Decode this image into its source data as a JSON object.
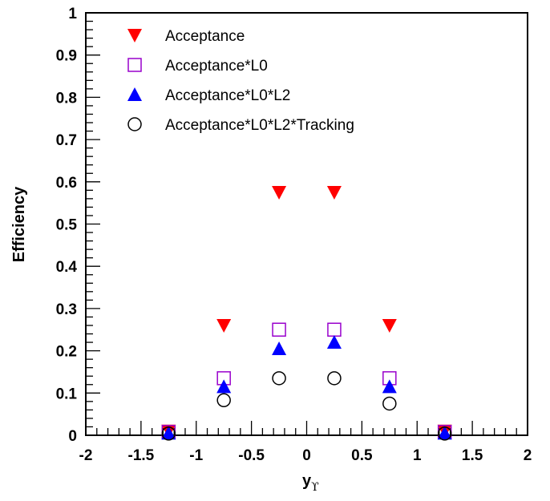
{
  "chart_data": {
    "type": "scatter",
    "title": "",
    "xlabel": "y",
    "xlabel_sub": "ϒ",
    "ylabel": "Efficiency",
    "xlim": [
      -2,
      2
    ],
    "ylim": [
      0,
      1
    ],
    "x_ticks": [
      "-2",
      "-1.5",
      "-1",
      "-0.5",
      "0",
      "0.5",
      "1",
      "1.5",
      "2"
    ],
    "y_ticks": [
      "0",
      "0.1",
      "0.2",
      "0.3",
      "0.4",
      "0.5",
      "0.6",
      "0.7",
      "0.8",
      "0.9",
      "1"
    ],
    "grid": false,
    "legend_position": "top-left",
    "series": [
      {
        "name": "Acceptance",
        "marker": "triangle-down",
        "color": "#ff0000",
        "x": [
          -1.25,
          -0.75,
          -0.25,
          0.25,
          0.75,
          1.25
        ],
        "y": [
          0.01,
          0.26,
          0.575,
          0.575,
          0.26,
          0.01
        ]
      },
      {
        "name": "Acceptance*L0",
        "marker": "square-open",
        "color": "#9900cc",
        "x": [
          -1.25,
          -0.75,
          -0.25,
          0.25,
          0.75,
          1.25
        ],
        "y": [
          0.008,
          0.135,
          0.25,
          0.25,
          0.135,
          0.008
        ]
      },
      {
        "name": "Acceptance*L0*L2",
        "marker": "triangle-up",
        "color": "#0000ff",
        "x": [
          -1.25,
          -0.75,
          -0.25,
          0.25,
          0.75,
          1.25
        ],
        "y": [
          0.005,
          0.115,
          0.205,
          0.22,
          0.115,
          0.005
        ]
      },
      {
        "name": "Acceptance*L0*L2*Tracking",
        "marker": "circle-open",
        "color": "#000000",
        "x": [
          -1.25,
          -0.75,
          -0.25,
          0.25,
          0.75,
          1.25
        ],
        "y": [
          0.004,
          0.083,
          0.135,
          0.135,
          0.075,
          0.004
        ]
      }
    ]
  }
}
